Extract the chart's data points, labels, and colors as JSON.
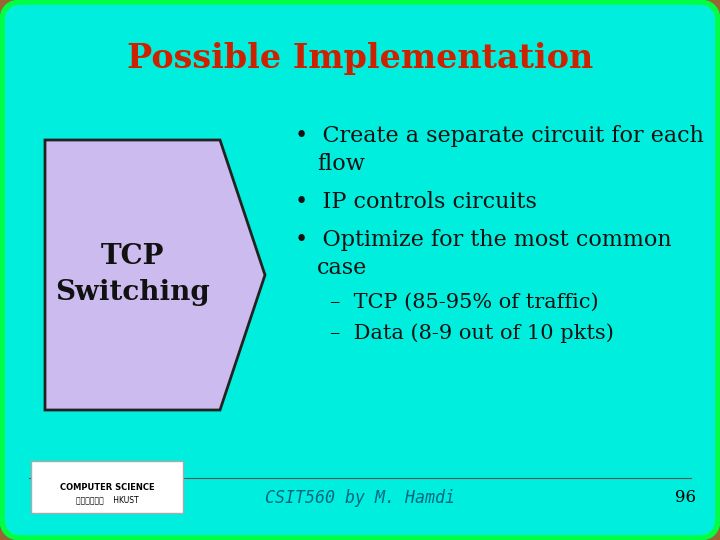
{
  "title": "Possible Implementation",
  "title_color": "#cc2200",
  "title_fontsize": 24,
  "bg_outer_color": "#996633",
  "bg_inner_color": "#00eedd",
  "shape_fill_color": "#ccbbee",
  "shape_edge_color": "#222222",
  "shape_label_line1": "TCP",
  "shape_label_line2": "Switching",
  "shape_label_fontsize": 20,
  "bullet_fontsize": 16,
  "sub_fontsize": 15,
  "bullet1_line1": "Create a separate circuit for each",
  "bullet1_line2": "flow",
  "bullet2": "IP controls circuits",
  "bullet3_line1": "Optimize for the most common",
  "bullet3_line2": "case",
  "sub1": "–  TCP (85-95% of traffic)",
  "sub2": "–  Data (8-9 out of 10 pkts)",
  "footer_text": "CSIT560 by M. Hamdi",
  "footer_page": "96",
  "footer_color": "#006688",
  "footer_fontsize": 12,
  "inner_border_color": "#00ff44",
  "text_color": "#111111"
}
